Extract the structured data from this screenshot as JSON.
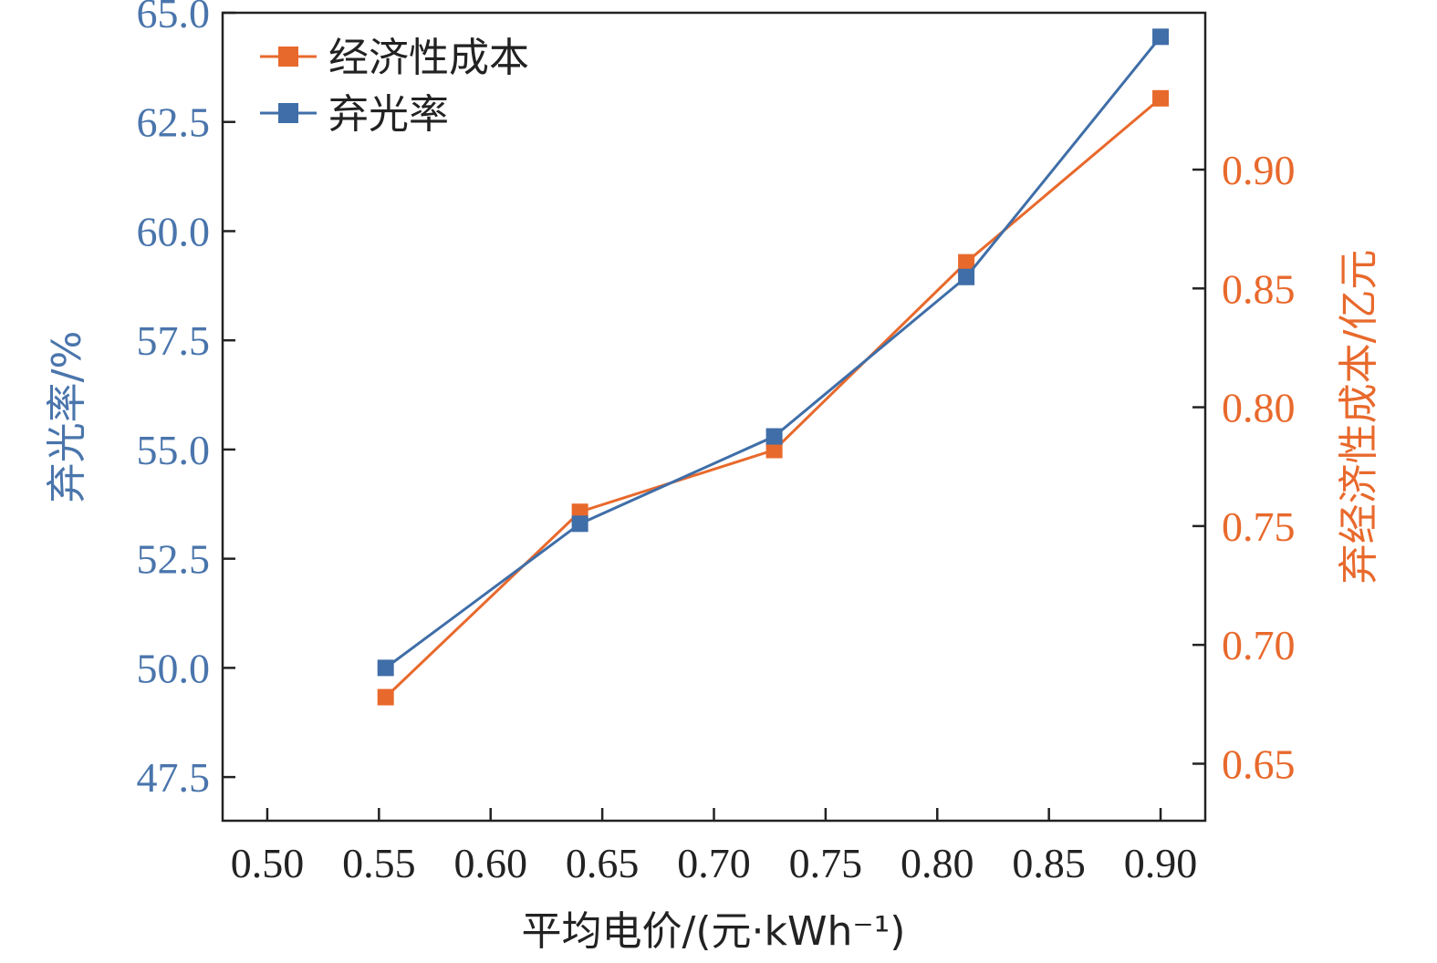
{
  "chart_data": {
    "type": "line",
    "xlabel": "平均电价/(元·kWh⁻¹)",
    "ylabel_left": "弃光率/%",
    "ylabel_right": "弃经济性成本/亿元",
    "xlim": [
      0.48,
      0.92
    ],
    "ylim_left": [
      46.5,
      65.0
    ],
    "ylim_right": [
      0.626,
      0.966
    ],
    "xticks": [
      "0.50",
      "0.55",
      "0.60",
      "0.65",
      "0.70",
      "0.75",
      "0.80",
      "0.85",
      "0.90"
    ],
    "yticks_left": [
      "47.5",
      "50.0",
      "52.5",
      "55.0",
      "57.5",
      "60.0",
      "62.5",
      "65.0"
    ],
    "yticks_right": [
      "0.65",
      "0.70",
      "0.75",
      "0.80",
      "0.85",
      "0.90"
    ],
    "legend_position": "top-left",
    "grid": false,
    "series": [
      {
        "name": "经济性成本",
        "axis": "right",
        "color": "#e8692c",
        "marker": "square",
        "x": [
          0.553,
          0.64,
          0.727,
          0.813,
          0.9
        ],
        "y": [
          0.678,
          0.756,
          0.782,
          0.861,
          0.93
        ]
      },
      {
        "name": "弃光率",
        "axis": "left",
        "color": "#3f6ea8",
        "marker": "square",
        "x": [
          0.553,
          0.64,
          0.727,
          0.813,
          0.9
        ],
        "y": [
          50.0,
          53.3,
          55.3,
          58.95,
          64.45
        ]
      }
    ],
    "colors": {
      "left_axis": "#4a75ac",
      "right_axis": "#e8692c",
      "frame": "#222222"
    }
  }
}
